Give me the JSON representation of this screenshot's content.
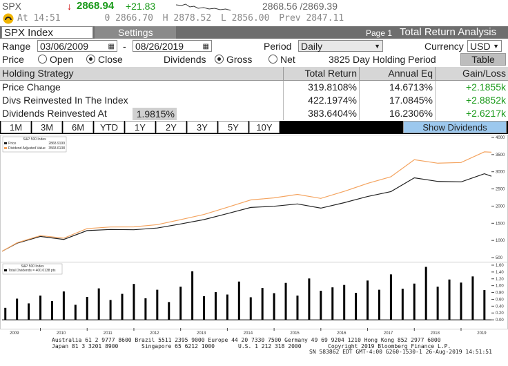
{
  "header": {
    "ticker": "SPX",
    "arrow": "↓",
    "last": "2868.94",
    "change": "+21.83",
    "bid_ask": "2868.56 /2869.39",
    "at_label": "At",
    "time": "14:51",
    "open_label": "0",
    "open": "2866.70",
    "high_label": "H",
    "high": "2878.52",
    "low_label": "L",
    "low": "2856.00",
    "prev_label": "Prev",
    "prev": "2847.11"
  },
  "toolbar": {
    "security": "SPX Index",
    "settings": "Settings",
    "page": "Page 1",
    "title": "Total Return Analysis"
  },
  "controls": {
    "range_label": "Range",
    "start": "03/06/2009",
    "dash": "-",
    "end": "08/26/2019",
    "period_label": "Period",
    "period": "Daily",
    "currency_label": "Currency",
    "currency": "USD",
    "price_label": "Price",
    "price_options": [
      "Open",
      "Close"
    ],
    "dividends_label": "Dividends",
    "dividend_options": [
      "Gross",
      "Net"
    ],
    "holding": "3825 Day Holding Period",
    "table_button": "Table"
  },
  "table": {
    "columns": [
      "Holding Strategy",
      "Total Return",
      "Annual Eq",
      "Gain/Loss"
    ],
    "rows": [
      [
        "Price Change",
        "319.8108%",
        "14.6713%",
        "+2.1855k"
      ],
      [
        "Divs Reinvested In The Index",
        "422.1974%",
        "17.0845%",
        "+2.8852k"
      ],
      [
        "Dividends Reinvested At",
        "383.6404%",
        "16.2306%",
        "+2.6217k"
      ]
    ],
    "reinvest_rate": "1.9815%"
  },
  "periods": [
    "1M",
    "3M",
    "6M",
    "YTD",
    "1Y",
    "2Y",
    "3Y",
    "5Y",
    "10Y"
  ],
  "show_dividends": "Show Dividends",
  "chart_data": [
    {
      "type": "line",
      "title": "S&P 500 Index",
      "x": [
        2009.18,
        2009.5,
        2010,
        2010.5,
        2011,
        2011.5,
        2012,
        2012.5,
        2013,
        2013.5,
        2014,
        2014.5,
        2015,
        2015.5,
        2016,
        2016.5,
        2017,
        2017.5,
        2018,
        2018.5,
        2019,
        2019.5,
        2019.65
      ],
      "series": [
        {
          "name": "Price",
          "last": "2868.9199",
          "color": "#222222",
          "values": [
            683,
            919,
            1115,
            1030,
            1286,
            1320,
            1312,
            1362,
            1480,
            1606,
            1782,
            1960,
            1995,
            2063,
            1940,
            2099,
            2279,
            2423,
            2823,
            2718,
            2704,
            2942,
            2868.9199
          ]
        },
        {
          "name": "Dividend Adjusted Value",
          "last": "3568.6138",
          "color": "#f4a460",
          "values": [
            683,
            930,
            1140,
            1065,
            1345,
            1392,
            1395,
            1460,
            1605,
            1755,
            1965,
            2180,
            2240,
            2340,
            2225,
            2430,
            2660,
            2855,
            3350,
            3250,
            3270,
            3580,
            3568.6138
          ]
        }
      ],
      "xlim": [
        2009.18,
        2019.65
      ],
      "ylim": [
        400,
        4040
      ],
      "yticks": [
        500,
        1000,
        1500,
        2000,
        2500,
        3000,
        3500,
        4000
      ]
    },
    {
      "type": "bar",
      "title": "S&P 500 Index",
      "x": [
        2009.25,
        2009.5,
        2009.75,
        2010,
        2010.25,
        2010.5,
        2010.75,
        2011,
        2011.25,
        2011.5,
        2011.75,
        2012,
        2012.25,
        2012.5,
        2012.75,
        2013,
        2013.25,
        2013.5,
        2013.75,
        2014,
        2014.25,
        2014.5,
        2014.75,
        2015,
        2015.25,
        2015.5,
        2015.75,
        2016,
        2016.25,
        2016.5,
        2016.75,
        2017,
        2017.25,
        2017.5,
        2017.75,
        2018,
        2018.25,
        2018.5,
        2018.75,
        2019,
        2019.25,
        2019.5
      ],
      "series": [
        {
          "name": "Total Dividends = 400.0138 pts",
          "color": "#000000",
          "values": [
            0.35,
            0.62,
            0.48,
            0.71,
            0.55,
            0.83,
            0.44,
            0.67,
            0.92,
            0.58,
            0.76,
            1.05,
            0.63,
            0.88,
            0.52,
            0.97,
            1.42,
            0.69,
            0.81,
            0.74,
            1.12,
            0.66,
            0.93,
            0.78,
            1.08,
            0.71,
            1.21,
            0.85,
            0.95,
            1.02,
            0.79,
            1.15,
            0.88,
            1.33,
            0.91,
            1.06,
            1.55,
            0.97,
            1.18,
            1.09,
            1.27,
            0.87
          ]
        }
      ],
      "xlim": [
        2009.18,
        2019.65
      ],
      "ylim": [
        -0.24,
        1.66
      ],
      "xticks": [
        2009,
        2010,
        2011,
        2012,
        2013,
        2014,
        2015,
        2016,
        2017,
        2018,
        2019
      ],
      "yticks": [
        {
          "value": 0,
          "label": "0.00"
        },
        {
          "value": 0.2,
          "label": "0.20"
        },
        {
          "value": 0.4,
          "label": "0.40"
        },
        {
          "value": 0.6,
          "label": "0.60"
        },
        {
          "value": 0.8,
          "label": "0.80"
        },
        {
          "value": 1.0,
          "label": "1.00"
        },
        {
          "value": 1.2,
          "label": "1.20"
        },
        {
          "value": 1.4,
          "label": "1.40"
        },
        {
          "value": 1.6,
          "label": "1.60"
        }
      ]
    }
  ],
  "footer": [
    "Australia 61 2 9777 8600 Brazil 5511 2395 9000 Europe 44 20 7330 7500 Germany 49 69 9204 1210 Hong Kong 852 2977 6000",
    "Japan 81 3 3201 8900",
    "Singapore 65 6212 1000",
    "U.S. 1 212 318 2000",
    "Copyright 2019 Bloomberg Finance L.P.",
    "SN 583862 EDT  GMT-4:00 G260-1530-1 26-Aug-2019 14:51:51"
  ]
}
